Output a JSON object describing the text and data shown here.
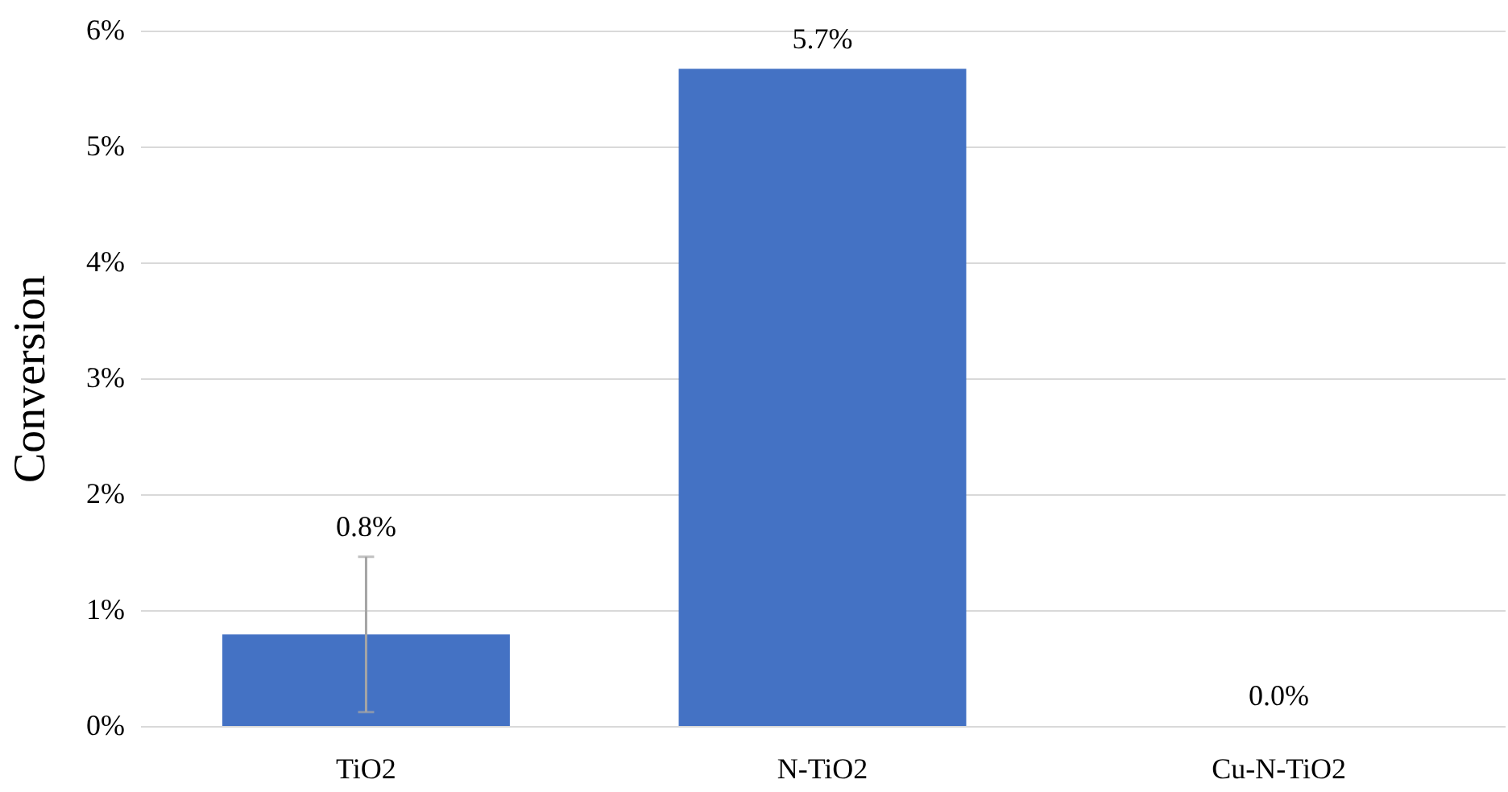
{
  "chart_data": {
    "type": "bar",
    "ylabel": "Conversion",
    "categories": [
      "TiO2",
      "N-TiO2",
      "Cu-N-TiO2"
    ],
    "values": [
      0.79,
      5.67,
      0.0
    ],
    "errors": [
      0.67,
      null,
      null
    ],
    "value_labels": [
      "0.8%",
      "5.7%",
      "0.0%"
    ],
    "color": "#4472c4",
    "ylim": [
      0,
      6
    ],
    "yticks": [
      {
        "value": 0,
        "label": "0%"
      },
      {
        "value": 1,
        "label": "1%"
      },
      {
        "value": 2,
        "label": "2%"
      },
      {
        "value": 3,
        "label": "3%"
      },
      {
        "value": 4,
        "label": "4%"
      },
      {
        "value": 5,
        "label": "5%"
      },
      {
        "value": 6,
        "label": "6%"
      }
    ],
    "grid": "y"
  }
}
